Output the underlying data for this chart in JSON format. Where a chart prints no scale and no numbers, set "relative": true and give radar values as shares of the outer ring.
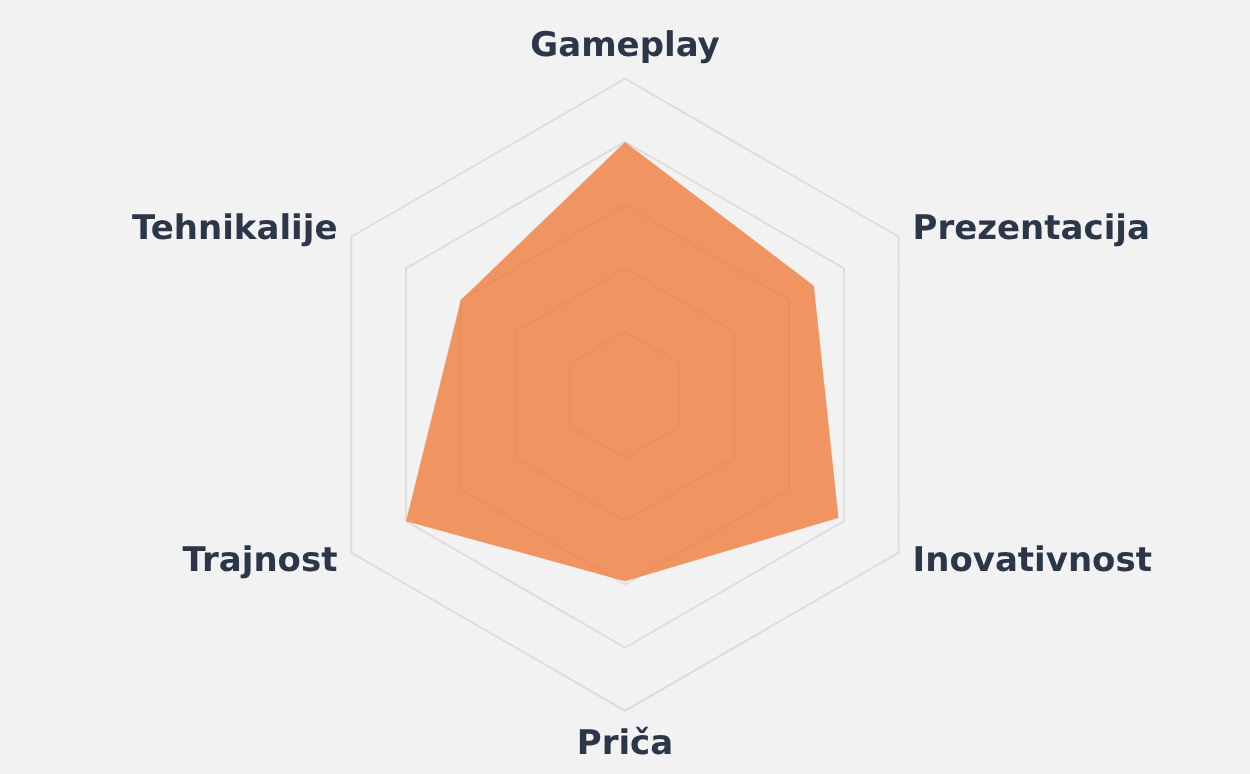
{
  "chart_data": {
    "type": "radar",
    "relative": true,
    "grid": true,
    "categories": [
      "Gameplay",
      "Prezentacija",
      "Inovativnost",
      "Priča",
      "Trajnost",
      "Tehnikalije"
    ],
    "series": [
      {
        "color": "#ef7d3c",
        "values": [
          0.8,
          0.69,
          0.78,
          0.59,
          0.8,
          0.6
        ]
      }
    ]
  }
}
